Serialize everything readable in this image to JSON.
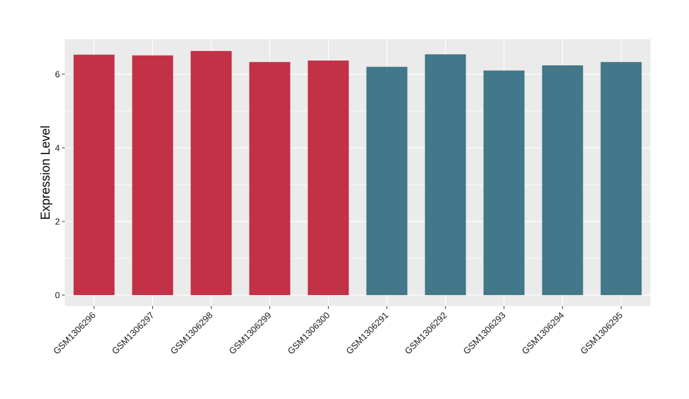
{
  "chart_data": {
    "type": "bar",
    "title": "",
    "xlabel": "",
    "ylabel": "Expression Level",
    "categories": [
      "GSM1306296",
      "GSM1306297",
      "GSM1306298",
      "GSM1306299",
      "GSM1306300",
      "GSM1306291",
      "GSM1306292",
      "GSM1306293",
      "GSM1306294",
      "GSM1306295"
    ],
    "values": [
      6.53,
      6.51,
      6.63,
      6.33,
      6.37,
      6.2,
      6.54,
      6.1,
      6.24,
      6.33
    ],
    "groups": [
      1,
      1,
      1,
      1,
      1,
      2,
      2,
      2,
      2,
      2
    ],
    "group_colors": [
      "#c23146",
      "#43788a"
    ],
    "ylim": [
      -0.3,
      6.95
    ],
    "yticks": [
      0,
      2,
      4,
      6
    ],
    "grid": true,
    "legend": "none",
    "panel_background": "#ebebeb",
    "gridline_color": "#ffffff"
  }
}
